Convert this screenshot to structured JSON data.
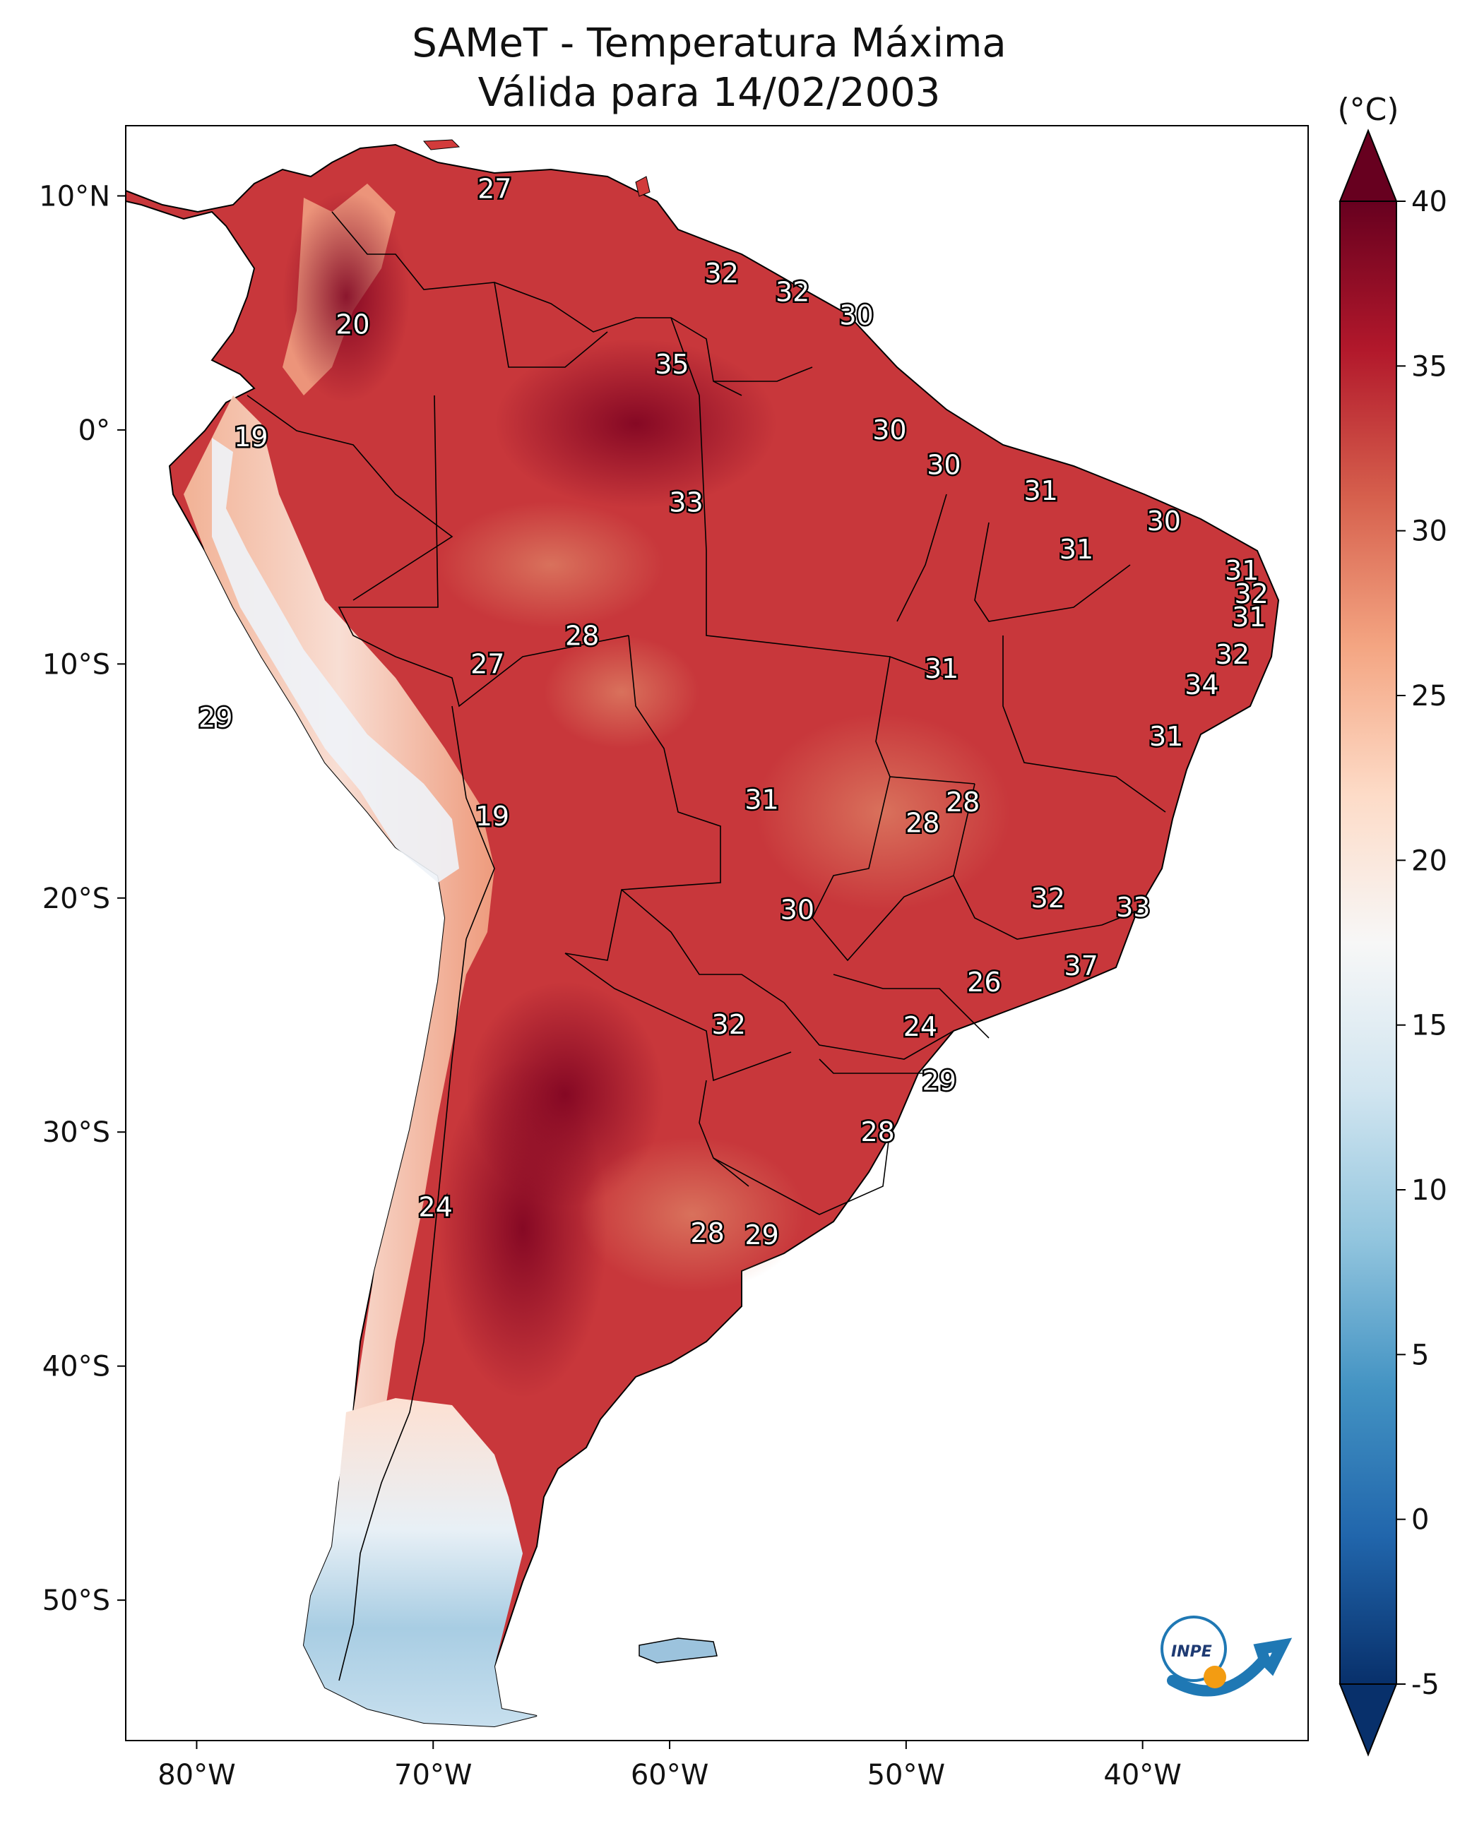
{
  "title": {
    "line1": "SAMeT - Temperatura Máxima",
    "line2": "Válida para 14/02/2003"
  },
  "map": {
    "lon_ticks": [
      "80°W",
      "70°W",
      "60°W",
      "50°W",
      "40°W"
    ],
    "lat_ticks": [
      "10°N",
      "0°",
      "10°S",
      "20°S",
      "30°S",
      "40°S",
      "50°S"
    ],
    "lon_values": [
      -80,
      -70,
      -60,
      -50,
      -40
    ],
    "lat_values": [
      10,
      0,
      -10,
      -20,
      -30,
      -40,
      -50
    ],
    "extent": {
      "lon_min": -83,
      "lon_max": -33,
      "lat_min": -56,
      "lat_max": 13
    }
  },
  "colorbar": {
    "unit": "(°C)",
    "ticks": [
      "40",
      "35",
      "30",
      "25",
      "20",
      "15",
      "10",
      "5",
      "0",
      "-5"
    ],
    "tick_values": [
      40,
      35,
      30,
      25,
      20,
      15,
      10,
      5,
      0,
      -5
    ],
    "vmin": -5,
    "vmax": 40,
    "colors": [
      "#08306b",
      "#2166ac",
      "#4393c3",
      "#92c5de",
      "#d1e5f0",
      "#f7f7f7",
      "#fddbc7",
      "#f4a582",
      "#d6604d",
      "#b2182b",
      "#67001f"
    ]
  },
  "labels": [
    {
      "text": "27",
      "lon": -67.4,
      "lat": 10.3
    },
    {
      "text": "32",
      "lon": -57.8,
      "lat": 6.7
    },
    {
      "text": "32",
      "lon": -54.8,
      "lat": 5.9
    },
    {
      "text": "30",
      "lon": -52.1,
      "lat": 4.9
    },
    {
      "text": "20",
      "lon": -73.4,
      "lat": 4.5
    },
    {
      "text": "35",
      "lon": -59.9,
      "lat": 2.8
    },
    {
      "text": "19",
      "lon": -77.7,
      "lat": -0.3
    },
    {
      "text": "30",
      "lon": -50.7,
      "lat": 0.0
    },
    {
      "text": "30",
      "lon": -48.4,
      "lat": -1.5
    },
    {
      "text": "31",
      "lon": -44.3,
      "lat": -2.6
    },
    {
      "text": "33",
      "lon": -59.3,
      "lat": -3.1
    },
    {
      "text": "30",
      "lon": -39.1,
      "lat": -3.9
    },
    {
      "text": "31",
      "lon": -42.8,
      "lat": -5.1
    },
    {
      "text": "31",
      "lon": -35.8,
      "lat": -6.0
    },
    {
      "text": "32",
      "lon": -35.4,
      "lat": -7.0
    },
    {
      "text": "31",
      "lon": -35.5,
      "lat": -8.0
    },
    {
      "text": "28",
      "lon": -63.7,
      "lat": -8.8
    },
    {
      "text": "32",
      "lon": -36.2,
      "lat": -9.6
    },
    {
      "text": "27",
      "lon": -67.7,
      "lat": -10.0
    },
    {
      "text": "31",
      "lon": -48.5,
      "lat": -10.2
    },
    {
      "text": "34",
      "lon": -37.5,
      "lat": -10.9
    },
    {
      "text": "29",
      "lon": -79.2,
      "lat": -12.3
    },
    {
      "text": "31",
      "lon": -39.0,
      "lat": -13.1
    },
    {
      "text": "31",
      "lon": -56.1,
      "lat": -15.8
    },
    {
      "text": "28",
      "lon": -47.6,
      "lat": -15.9
    },
    {
      "text": "28",
      "lon": -49.3,
      "lat": -16.8
    },
    {
      "text": "19",
      "lon": -67.5,
      "lat": -16.5
    },
    {
      "text": "32",
      "lon": -44.0,
      "lat": -20.0
    },
    {
      "text": "33",
      "lon": -40.4,
      "lat": -20.4
    },
    {
      "text": "30",
      "lon": -54.6,
      "lat": -20.5
    },
    {
      "text": "37",
      "lon": -42.6,
      "lat": -22.9
    },
    {
      "text": "26",
      "lon": -46.7,
      "lat": -23.6
    },
    {
      "text": "32",
      "lon": -57.5,
      "lat": -25.4
    },
    {
      "text": "24",
      "lon": -49.4,
      "lat": -25.5
    },
    {
      "text": "29",
      "lon": -48.6,
      "lat": -27.8
    },
    {
      "text": "28",
      "lon": -51.2,
      "lat": -30.0
    },
    {
      "text": "24",
      "lon": -69.9,
      "lat": -33.2
    },
    {
      "text": "28",
      "lon": -58.4,
      "lat": -34.3
    },
    {
      "text": "29",
      "lon": -56.1,
      "lat": -34.4
    }
  ],
  "logo": {
    "text": "INPE"
  }
}
